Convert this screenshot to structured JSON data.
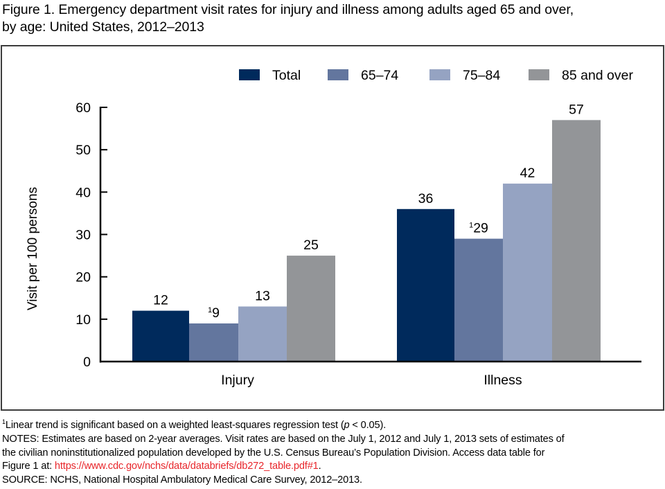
{
  "figure": {
    "title_line1": "Figure 1. Emergency department visit rates for injury and illness among adults aged 65 and over,",
    "title_line2": "by age: United States, 2012–2013"
  },
  "chart_data": {
    "type": "bar",
    "title": "Emergency department visit rates for injury and illness among adults aged 65 and over, by age: United States, 2012–2013",
    "xlabel": "",
    "ylabel": "Visit per 100 persons",
    "ylim": [
      0,
      60
    ],
    "yticks": [
      0,
      10,
      20,
      30,
      40,
      50,
      60
    ],
    "grid": false,
    "legend_position": "top-right",
    "categories": [
      "Injury",
      "Illness"
    ],
    "series": [
      {
        "name": "Total",
        "color": "#002a5c",
        "values": [
          12,
          36
        ],
        "labels": [
          "12",
          "36"
        ],
        "footnote_marks": [
          "",
          ""
        ]
      },
      {
        "name": "65–74",
        "color": "#63769e",
        "values": [
          9,
          29
        ],
        "labels": [
          "9",
          "29"
        ],
        "footnote_marks": [
          "1",
          "1"
        ]
      },
      {
        "name": "75–84",
        "color": "#95a3c2",
        "values": [
          13,
          42
        ],
        "labels": [
          "13",
          "42"
        ],
        "footnote_marks": [
          "",
          ""
        ]
      },
      {
        "name": "85 and over",
        "color": "#939598",
        "values": [
          25,
          57
        ],
        "labels": [
          "25",
          "57"
        ],
        "footnote_marks": [
          "",
          ""
        ]
      }
    ]
  },
  "footnotes": {
    "trend_mark": "1",
    "trend_text_a": "Linear trend is significant based on a weighted least-squares regression test (",
    "trend_p": "p",
    "trend_text_b": " < 0.05).",
    "notes_line1": "NOTES: Estimates are based on 2-year averages. Visit rates are based on the July 1, 2012 and July 1, 2013 sets of estimates of",
    "notes_line2": "the civilian noninstitutionalized population developed by the U.S. Census Bureau’s Population Division. Access data table for",
    "notes_line3_prefix": "Figure 1 at: ",
    "notes_link": "https://www.cdc.gov/nchs/data/databriefs/db272_table.pdf#1",
    "notes_line3_suffix": ".",
    "source": "SOURCE: NCHS, National Hospital Ambulatory Medical Care Survey, 2012–2013.",
    "link_color": "#e8262b"
  }
}
